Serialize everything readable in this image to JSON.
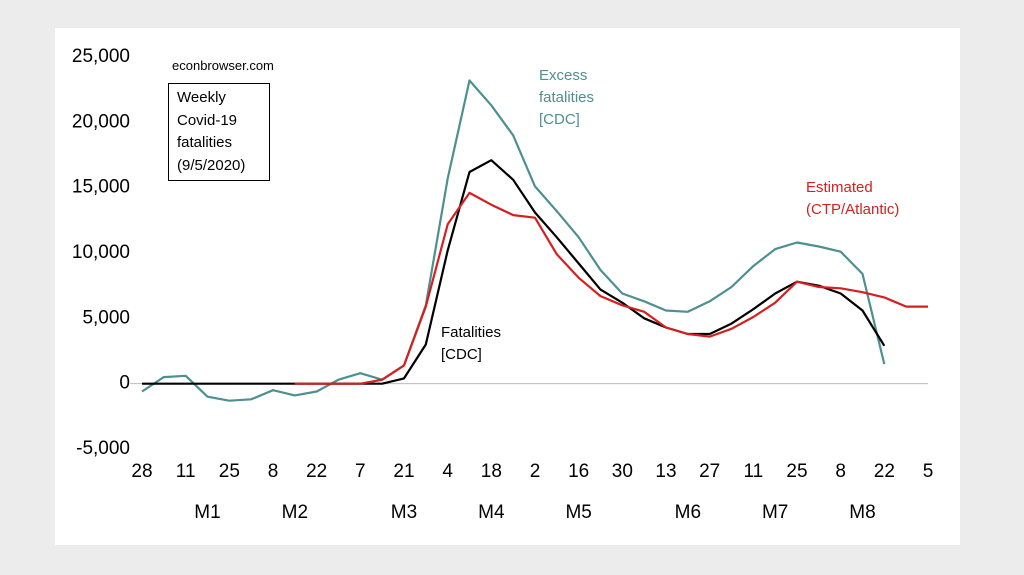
{
  "chart_data": {
    "type": "line",
    "title": "Weekly Covid-19 fatalities (9/5/2020)",
    "subtitle": "econbrowser.com",
    "categories": [
      "28",
      null,
      "11",
      null,
      "25",
      null,
      "8",
      null,
      "22",
      null,
      "7",
      null,
      "21",
      null,
      "4",
      null,
      "18",
      null,
      "2",
      null,
      "16",
      null,
      "30",
      null,
      "13",
      null,
      "27",
      null,
      "11",
      null,
      "25",
      null,
      "8",
      null,
      "22",
      null,
      "5"
    ],
    "month_labels": [
      "M1",
      "M2",
      "M3",
      "M4",
      "M5",
      "M6",
      "M7",
      "M8"
    ],
    "ylim": [
      -5000,
      25000
    ],
    "yticks": [
      {
        "value": -5000,
        "label": "-5,000"
      },
      0,
      {
        "value": 5000,
        "label": "5,000"
      },
      {
        "value": 10000,
        "label": "10,000"
      },
      {
        "value": 15000,
        "label": "15,000"
      },
      {
        "value": 20000,
        "label": "20,000"
      },
      {
        "value": 25000,
        "label": "25,000"
      }
    ],
    "grid": false,
    "series": [
      {
        "name": "Excess fatalities [CDC]",
        "color": "#4e8f8f",
        "values": [
          -600,
          500,
          600,
          -1000,
          -1300,
          -1200,
          -500,
          -900,
          -600,
          300,
          800,
          300,
          1400,
          6000,
          15700,
          23200,
          21300,
          19000,
          15100,
          13200,
          11200,
          8700,
          6900,
          6300,
          5600,
          5500,
          6300,
          7400,
          9000,
          10300,
          10800,
          10500,
          10100,
          8400,
          1500,
          null,
          null
        ]
      },
      {
        "name": "Fatalities [CDC]",
        "color": "#000000",
        "values": [
          0,
          0,
          0,
          0,
          0,
          0,
          0,
          0,
          0,
          0,
          0,
          0,
          400,
          3000,
          10200,
          16200,
          17100,
          15600,
          13100,
          11200,
          9200,
          7200,
          6200,
          5000,
          4300,
          3800,
          3800,
          4600,
          5700,
          6900,
          7800,
          7500,
          6900,
          5600,
          2900,
          null,
          null
        ]
      },
      {
        "name": "Estimated (CTP/Atlantic)",
        "color": "#d42020",
        "values": [
          null,
          null,
          null,
          null,
          null,
          null,
          null,
          0,
          0,
          0,
          0,
          300,
          1400,
          5900,
          12200,
          14600,
          13700,
          12900,
          12700,
          9900,
          8100,
          6700,
          6000,
          5500,
          4300,
          3800,
          3600,
          4200,
          5100,
          6200,
          7800,
          7400,
          7300,
          7000,
          6600,
          5900,
          5900
        ]
      }
    ]
  }
}
